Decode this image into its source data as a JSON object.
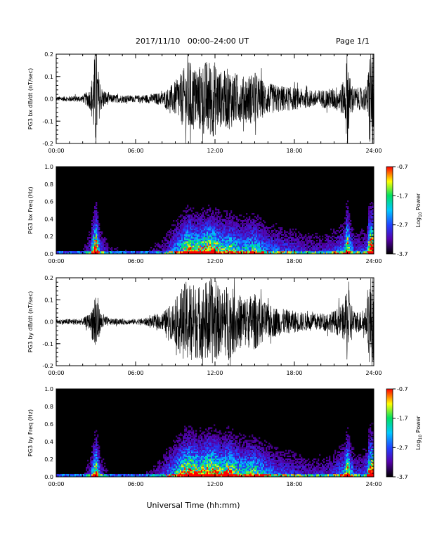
{
  "header": {
    "title": "2017/11/10   00:00–24:00 UT",
    "page_label": "Page 1/1"
  },
  "footer": {
    "xaxis_title": "Universal Time (hh:mm)"
  },
  "colors": {
    "waveform": "#000000",
    "spectrogram_bg": "#000000",
    "colorbar": [
      "#000000",
      "#5500aa",
      "#2040ff",
      "#00c8ff",
      "#00e060",
      "#ffff00",
      "#ff0000"
    ]
  },
  "chart_data": [
    {
      "type": "line",
      "id": "bx-wave",
      "ylabel": "PG3 bx dB/dt (nT/sec)",
      "xlim": [
        0,
        24
      ],
      "ylim": [
        -0.2,
        0.2
      ],
      "x_ticks": [
        "00:00",
        "06:00",
        "12:00",
        "18:00",
        "24:00"
      ],
      "y_ticks": [
        "0.2",
        "0.1",
        "0.0",
        "-0.1",
        "-0.2"
      ],
      "amplitude_envelope": {
        "x_hours": [
          0,
          2,
          2.6,
          3.0,
          3.3,
          4,
          6,
          7,
          8,
          8.5,
          9,
          9.5,
          10,
          10.5,
          11,
          11.5,
          12,
          12.5,
          13,
          13.5,
          14,
          14.5,
          15,
          15.5,
          16,
          17,
          18,
          19,
          20,
          21,
          21.8,
          22.0,
          22.2,
          22.5,
          23,
          23.5,
          23.7,
          24
        ],
        "amplitude": [
          0.01,
          0.015,
          0.05,
          0.25,
          0.06,
          0.02,
          0.015,
          0.02,
          0.03,
          0.05,
          0.08,
          0.12,
          0.18,
          0.14,
          0.16,
          0.18,
          0.17,
          0.12,
          0.14,
          0.12,
          0.1,
          0.11,
          0.12,
          0.09,
          0.07,
          0.06,
          0.05,
          0.04,
          0.04,
          0.05,
          0.08,
          0.25,
          0.1,
          0.05,
          0.05,
          0.06,
          0.25,
          0.25
        ]
      }
    },
    {
      "type": "heatmap",
      "id": "bx-spec",
      "ylabel": "PG3 bx Freq (Hz)",
      "xlim": [
        0,
        24
      ],
      "ylim": [
        0.0,
        1.0
      ],
      "x_ticks": [
        "00:00",
        "06:00",
        "12:00",
        "18:00",
        "24:00"
      ],
      "y_ticks": [
        "1.0",
        "0.8",
        "0.6",
        "0.4",
        "0.2",
        "0.0"
      ],
      "colorbar": {
        "label": "Log10 Power",
        "label_main": "Log",
        "label_sub": "10",
        "label_tail": " Power",
        "ticks": [
          "-0.7",
          "-1.7",
          "-2.7",
          "-3.7"
        ],
        "range": [
          -3.7,
          -0.7
        ]
      }
    },
    {
      "type": "line",
      "id": "by-wave",
      "ylabel": "PG3 by dB/dt (nT/sec)",
      "xlim": [
        0,
        24
      ],
      "ylim": [
        -0.2,
        0.2
      ],
      "x_ticks": [
        "00:00",
        "06:00",
        "12:00",
        "18:00",
        "24:00"
      ],
      "y_ticks": [
        "0.2",
        "0.1",
        "0.0",
        "-0.1",
        "-0.2"
      ],
      "amplitude_envelope": {
        "x_hours": [
          0,
          2,
          2.6,
          3.0,
          3.3,
          4,
          6,
          7,
          8,
          8.5,
          9,
          9.5,
          10,
          10.5,
          11,
          11.5,
          12,
          12.5,
          13,
          13.5,
          14,
          14.5,
          15,
          15.5,
          16,
          17,
          18,
          19,
          20,
          21,
          21.8,
          22.0,
          22.2,
          22.5,
          23,
          23.5,
          23.7,
          24
        ],
        "amplitude": [
          0.012,
          0.015,
          0.04,
          0.18,
          0.05,
          0.015,
          0.012,
          0.02,
          0.04,
          0.07,
          0.1,
          0.16,
          0.2,
          0.17,
          0.17,
          0.2,
          0.19,
          0.14,
          0.18,
          0.14,
          0.12,
          0.12,
          0.13,
          0.1,
          0.08,
          0.06,
          0.05,
          0.04,
          0.04,
          0.05,
          0.09,
          0.2,
          0.12,
          0.05,
          0.05,
          0.07,
          0.22,
          0.22
        ]
      }
    },
    {
      "type": "heatmap",
      "id": "by-spec",
      "ylabel": "PG3 by Freq (Hz)",
      "xlim": [
        0,
        24
      ],
      "ylim": [
        0.0,
        1.0
      ],
      "x_ticks": [
        "00:00",
        "06:00",
        "12:00",
        "18:00",
        "24:00"
      ],
      "y_ticks": [
        "1.0",
        "0.8",
        "0.6",
        "0.4",
        "0.2",
        "0.0"
      ],
      "colorbar": {
        "label": "Log10 Power",
        "label_main": "Log",
        "label_sub": "10",
        "label_tail": " Power",
        "ticks": [
          "-0.7",
          "-1.7",
          "-2.7",
          "-3.7"
        ],
        "range": [
          -3.7,
          -0.7
        ]
      }
    }
  ]
}
